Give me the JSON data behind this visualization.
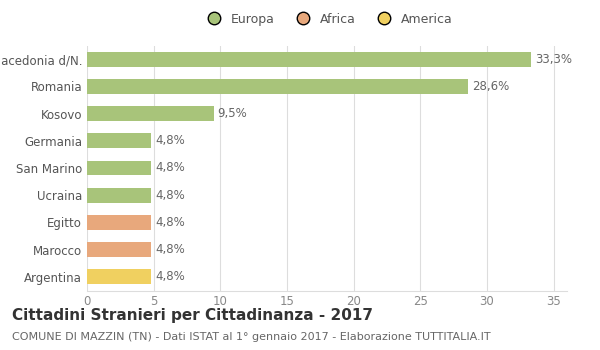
{
  "categories": [
    "Macedonia d/N.",
    "Romania",
    "Kosovo",
    "Germania",
    "San Marino",
    "Ucraina",
    "Egitto",
    "Marocco",
    "Argentina"
  ],
  "values": [
    33.3,
    28.6,
    9.5,
    4.8,
    4.8,
    4.8,
    4.8,
    4.8,
    4.8
  ],
  "labels": [
    "33,3%",
    "28,6%",
    "9,5%",
    "4,8%",
    "4,8%",
    "4,8%",
    "4,8%",
    "4,8%",
    "4,8%"
  ],
  "colors": [
    "#a8c47a",
    "#a8c47a",
    "#a8c47a",
    "#a8c47a",
    "#a8c47a",
    "#a8c47a",
    "#e8a87c",
    "#e8a87c",
    "#f0d060"
  ],
  "legend_labels": [
    "Europa",
    "Africa",
    "America"
  ],
  "legend_colors": [
    "#a8c47a",
    "#e8a87c",
    "#f0d060"
  ],
  "title": "Cittadini Stranieri per Cittadinanza - 2017",
  "subtitle": "COMUNE DI MAZZIN (TN) - Dati ISTAT al 1° gennaio 2017 - Elaborazione TUTTITALIA.IT",
  "xlim": [
    0,
    36
  ],
  "xticks": [
    0,
    5,
    10,
    15,
    20,
    25,
    30,
    35
  ],
  "background_color": "#ffffff",
  "bar_height": 0.55,
  "grid_color": "#dddddd",
  "label_fontsize": 8.5,
  "title_fontsize": 11,
  "subtitle_fontsize": 8,
  "tick_fontsize": 8.5
}
